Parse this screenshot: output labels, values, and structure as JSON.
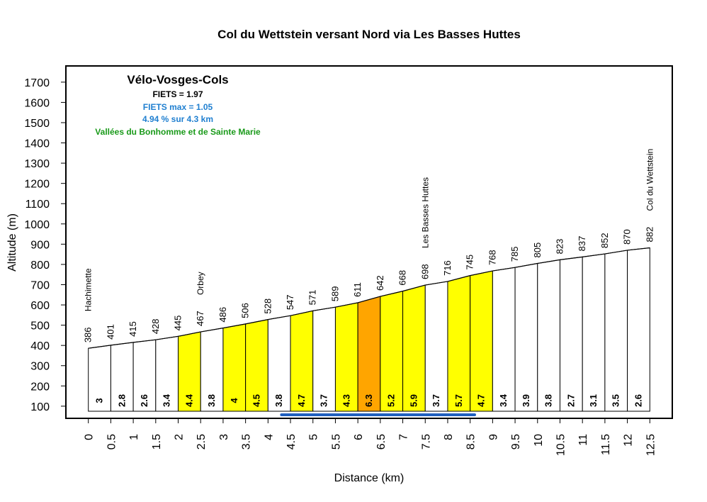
{
  "chart_data": {
    "type": "area",
    "title": "Col du Wettstein versant Nord via Les Basses Huttes",
    "xlabel": "Distance (km)",
    "ylabel": "Altitude (m)",
    "xlim": [
      -0.5,
      13
    ],
    "ylim": [
      40,
      1780
    ],
    "x_ticks": [
      "0",
      "0.5",
      "1",
      "1.5",
      "2",
      "2.5",
      "3",
      "3.5",
      "4",
      "4.5",
      "5",
      "5.5",
      "6",
      "6.5",
      "7",
      "7.5",
      "8",
      "8.5",
      "9",
      "9.5",
      "10",
      "10.5",
      "11",
      "11.5",
      "12",
      "12.5"
    ],
    "y_ticks": [
      "100",
      "200",
      "300",
      "400",
      "500",
      "600",
      "700",
      "800",
      "900",
      "1000",
      "1100",
      "1200",
      "1300",
      "1400",
      "1500",
      "1600",
      "1700"
    ],
    "x": [
      0,
      0.5,
      1,
      1.5,
      2,
      2.5,
      3,
      3.5,
      4,
      4.5,
      5,
      5.5,
      6,
      6.5,
      7,
      7.5,
      8,
      8.5,
      9,
      9.5,
      10,
      10.5,
      11,
      11.5,
      12,
      12.5
    ],
    "altitude": [
      386,
      401,
      415,
      428,
      445,
      467,
      486,
      506,
      528,
      547,
      571,
      589,
      611,
      642,
      668,
      698,
      716,
      745,
      768,
      785,
      805,
      823,
      837,
      852,
      870,
      882
    ],
    "altitude_labels": [
      "386",
      "401",
      "415",
      "428",
      "445",
      "467",
      "486",
      "506",
      "528",
      "547",
      "571",
      "589",
      "611",
      "642",
      "668",
      "698",
      "716",
      "745",
      "768",
      "785",
      "805",
      "823",
      "837",
      "852",
      "870",
      "882"
    ],
    "gradients": [
      "3",
      "2.8",
      "2.6",
      "3.4",
      "4.4",
      "3.8",
      "4",
      "4.5",
      "3.8",
      "4.7",
      "3.7",
      "4.3",
      "6.3",
      "5.2",
      "5.9",
      "3.7",
      "5.7",
      "4.7",
      "3.4",
      "3.9",
      "3.8",
      "2.7",
      "3.1",
      "3.5",
      "2.6"
    ],
    "segment_colors": [
      "#ffffff",
      "#ffffff",
      "#ffffff",
      "#ffffff",
      "#ffff00",
      "#ffffff",
      "#ffff00",
      "#ffff00",
      "#ffffff",
      "#ffff00",
      "#ffffff",
      "#ffff00",
      "#ffa500",
      "#ffff00",
      "#ffff00",
      "#ffffff",
      "#ffff00",
      "#ffff00",
      "#ffffff",
      "#ffffff",
      "#ffffff",
      "#ffffff",
      "#ffffff",
      "#ffffff",
      "#ffffff"
    ],
    "places": [
      {
        "name": "Hachimette",
        "km": 0
      },
      {
        "name": "Orbey",
        "km": 2.5
      },
      {
        "name": "Les Basses Huttes",
        "km": 7.5
      },
      {
        "name": "Col du Wettstein",
        "km": 12.5
      }
    ],
    "max_segment": {
      "from_km": 4.3,
      "to_km": 8.6,
      "color": "#1f5fbf"
    },
    "base_altitude": 75,
    "info": {
      "site": "Vélo-Vosges-Cols",
      "fiets": "FIETS = 1.97",
      "fiets_max": "FIETS max = 1.05",
      "max_detail": "4.94 % sur 4.3 km",
      "region": "Vallées du Bonhomme et de Sainte Marie"
    },
    "colors": {
      "fiets_max": "#1f7fd0",
      "region": "#1a9a1a",
      "frame": "#000000"
    }
  }
}
